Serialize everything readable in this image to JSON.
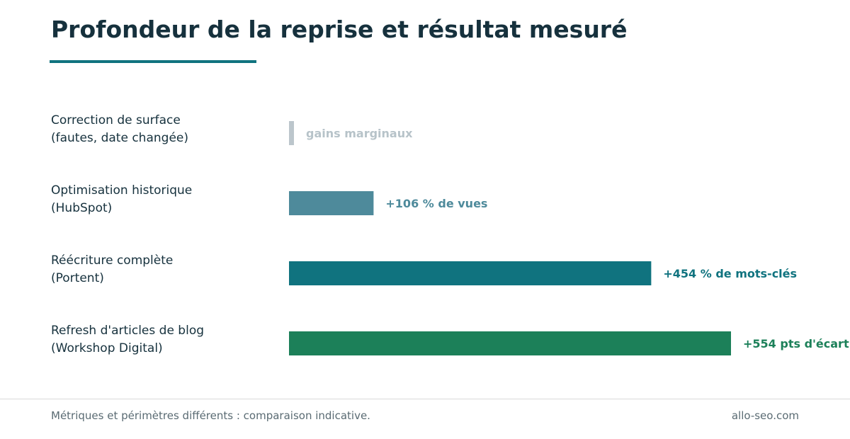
{
  "page": {
    "title": "Profondeur de la reprise et résultat mesuré",
    "footer_note": "Métriques et périmètres différents : comparaison indicative.",
    "footer_site": "allo-seo.com"
  },
  "colors": {
    "title": "#16313d",
    "accent": "#10737f",
    "category_text": "#16313d"
  },
  "chart_data": {
    "type": "bar",
    "orientation": "horizontal",
    "title": "Profondeur de la reprise et résultat mesuré",
    "xlabel": "",
    "ylabel": "",
    "grid": false,
    "legend": "none",
    "xlim": [
      0,
      554
    ],
    "categories": [
      [
        "Correction de surface",
        "(fautes, date changée)"
      ],
      [
        "Optimisation historique",
        "(HubSpot)"
      ],
      [
        "Réécriture complète",
        "(Portent)"
      ],
      [
        "Refresh d'articles de blog",
        "(Workshop Digital)"
      ]
    ],
    "values": [
      6,
      106,
      454,
      554
    ],
    "data_labels": [
      "gains marginaux",
      "+106 % de vues",
      "+454 % de mots-clés",
      "+554 pts d'écart"
    ],
    "bar_colors": [
      "#bcc6cc",
      "#4e8a9b",
      "#10737f",
      "#1c8059"
    ],
    "label_colors": [
      "#b7c3c9",
      "#4e8a9b",
      "#10737f",
      "#1c8059"
    ]
  }
}
